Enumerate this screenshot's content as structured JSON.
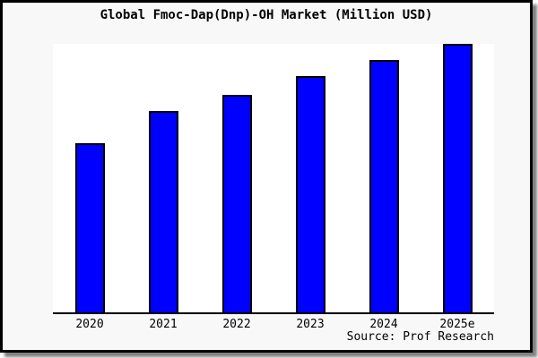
{
  "window": {
    "card_background": "#f8f8f8",
    "border_color": "#000000",
    "shadow_color": "#808080"
  },
  "chart_data": {
    "type": "bar",
    "title": "Global Fmoc-Dap(Dnp)-OH Market (Million USD)",
    "categories": [
      "2020",
      "2021",
      "2022",
      "2023",
      "2024",
      "2025e"
    ],
    "values": [
      63,
      75,
      81,
      88,
      94,
      100
    ],
    "xlabel": "",
    "ylabel": "",
    "ylim": [
      0,
      100
    ],
    "y_axis_visible": false,
    "grid": false,
    "legend": false,
    "bar_color": "#0000ff",
    "bar_border_color": "#000000",
    "plot_background": "#ffffff",
    "source": "Source: Prof Research"
  }
}
